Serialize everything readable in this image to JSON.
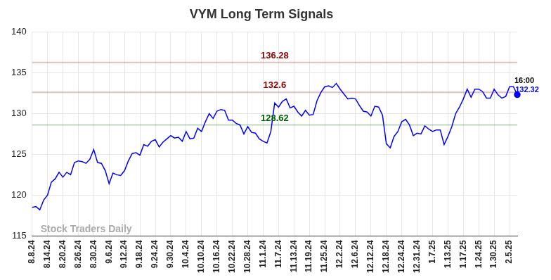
{
  "chart_data": {
    "type": "line",
    "title": "VYM Long Term Signals",
    "categories": [
      "8.8.24",
      null,
      null,
      null,
      "8.14.24",
      null,
      null,
      null,
      "8.20.24",
      null,
      null,
      null,
      "8.26.24",
      null,
      null,
      null,
      "8.30.24",
      null,
      null,
      null,
      "9.6.24",
      null,
      null,
      null,
      "9.12.24",
      null,
      null,
      null,
      "9.18.24",
      null,
      null,
      null,
      "9.24.24",
      null,
      null,
      null,
      "9.30.24",
      null,
      null,
      null,
      "10.4.24",
      null,
      null,
      null,
      "10.10.24",
      null,
      null,
      null,
      "10.16.24",
      null,
      null,
      null,
      "10.22.24",
      null,
      null,
      null,
      "10.28.24",
      null,
      null,
      null,
      "11.1.24",
      null,
      null,
      null,
      "11.7.24",
      null,
      null,
      null,
      "11.13.24",
      null,
      null,
      null,
      "11.19.24",
      null,
      null,
      null,
      "11.25.24",
      null,
      null,
      null,
      "12.2.24",
      null,
      null,
      null,
      "12.6.24",
      null,
      null,
      null,
      "12.12.24",
      null,
      null,
      null,
      "12.18.24",
      null,
      null,
      null,
      "12.24.24",
      null,
      null,
      null,
      "12.31.24",
      null,
      null,
      null,
      "1.7.25",
      null,
      null,
      null,
      "1.13.25",
      null,
      null,
      null,
      "1.17.25",
      null,
      null,
      null,
      "1.24.25",
      null,
      null,
      null,
      "1.30.25",
      null,
      null,
      null,
      "2.5.25",
      null,
      null
    ],
    "values": [
      118.5,
      118.6,
      118.2,
      119.4,
      120.0,
      121.6,
      122.0,
      122.8,
      122.2,
      122.8,
      122.5,
      124.0,
      124.2,
      124.1,
      123.9,
      124.4,
      125.6,
      124.0,
      123.9,
      123.0,
      121.4,
      122.7,
      122.5,
      122.4,
      123.0,
      124.2,
      125.1,
      125.2,
      124.9,
      126.2,
      126.0,
      126.6,
      126.8,
      125.9,
      126.5,
      126.9,
      127.3,
      127.0,
      127.1,
      126.6,
      127.8,
      126.9,
      127.0,
      128.2,
      127.8,
      129.0,
      130.0,
      129.4,
      130.3,
      130.5,
      130.4,
      129.2,
      129.2,
      128.8,
      128.6,
      127.5,
      128.4,
      127.7,
      127.6,
      126.9,
      126.6,
      126.4,
      127.8,
      131.3,
      130.8,
      131.5,
      131.8,
      130.7,
      130.9,
      130.2,
      129.7,
      130.4,
      129.8,
      129.9,
      131.6,
      132.6,
      133.3,
      133.4,
      133.2,
      133.7,
      133.0,
      132.4,
      131.8,
      131.9,
      131.8,
      131.0,
      130.3,
      130.2,
      129.7,
      130.9,
      130.8,
      129.8,
      126.3,
      125.8,
      127.2,
      127.8,
      129.0,
      129.3,
      128.6,
      127.3,
      127.6,
      127.5,
      128.5,
      128.1,
      127.8,
      128.0,
      128.0,
      126.2,
      127.2,
      128.4,
      130.0,
      130.8,
      131.8,
      133.0,
      132.0,
      133.0,
      133.0,
      132.7,
      131.9,
      131.9,
      133.0,
      132.3,
      131.9,
      132.1,
      133.3,
      133.3,
      132.32
    ],
    "color": "#0000ff",
    "levels": [
      {
        "value": 136.28,
        "color": "#8b0000"
      },
      {
        "value": 132.6,
        "color": "#8b0000"
      },
      {
        "value": 128.62,
        "color": "#006400"
      }
    ],
    "last_time": "16:00",
    "watermark": "Stock Traders Daily",
    "ylim": [
      115,
      140
    ],
    "yticks": [
      115,
      120,
      125,
      130,
      135,
      140
    ],
    "grid": true
  }
}
